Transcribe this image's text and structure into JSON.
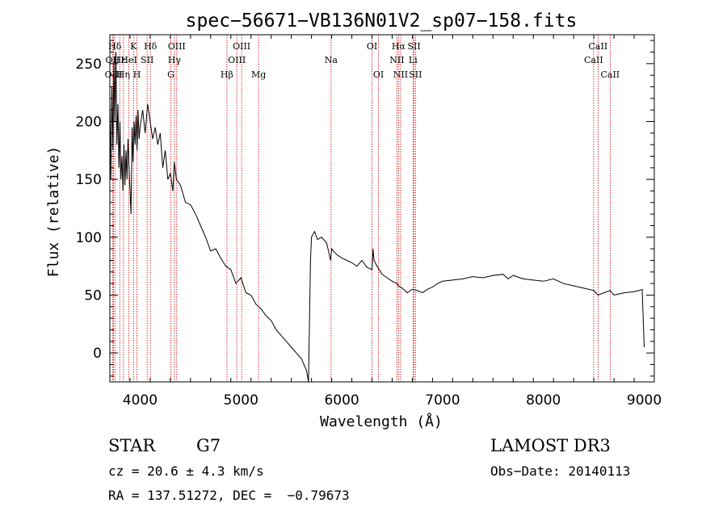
{
  "chart_data": {
    "type": "line",
    "title": "spec−56671−VB136N01V2_sp07−158.fits",
    "xlabel": "Wavelength (Å)",
    "ylabel": "Flux (relative)",
    "xlim": [
      3700,
      9100
    ],
    "ylim": [
      -25,
      275
    ],
    "xticks": [
      4000,
      5000,
      6000,
      7000,
      8000,
      9000
    ],
    "yticks": [
      0,
      50,
      100,
      150,
      200,
      250
    ],
    "grid": false,
    "series": [
      {
        "name": "flux",
        "x": [
          3700,
          3710,
          3720,
          3730,
          3740,
          3750,
          3760,
          3770,
          3780,
          3790,
          3800,
          3810,
          3820,
          3830,
          3840,
          3850,
          3860,
          3870,
          3880,
          3890,
          3900,
          3910,
          3920,
          3930,
          3940,
          3950,
          3960,
          3970,
          3980,
          3990,
          4000,
          4025,
          4050,
          4075,
          4100,
          4125,
          4150,
          4175,
          4200,
          4225,
          4250,
          4275,
          4300,
          4325,
          4340,
          4360,
          4400,
          4450,
          4500,
          4550,
          4600,
          4650,
          4700,
          4750,
          4800,
          4850,
          4900,
          4950,
          5000,
          5050,
          5100,
          5150,
          5200,
          5250,
          5300,
          5350,
          5400,
          5450,
          5500,
          5550,
          5600,
          5650,
          5670,
          5680,
          5690,
          5700,
          5730,
          5760,
          5800,
          5850,
          5890,
          5900,
          5950,
          6000,
          6050,
          6100,
          6150,
          6200,
          6250,
          6300,
          6310,
          6320,
          6350,
          6400,
          6450,
          6500,
          6550,
          6563,
          6600,
          6650,
          6700,
          6750,
          6800,
          6850,
          6900,
          6950,
          7000,
          7100,
          7200,
          7300,
          7400,
          7500,
          7600,
          7650,
          7700,
          7800,
          7900,
          8000,
          8100,
          8200,
          8300,
          8400,
          8500,
          8542,
          8600,
          8662,
          8700,
          8800,
          8900,
          8950,
          8980,
          9000
        ],
        "y": [
          220,
          150,
          230,
          175,
          250,
          200,
          260,
          180,
          215,
          160,
          200,
          150,
          170,
          140,
          180,
          145,
          175,
          150,
          185,
          160,
          140,
          120,
          195,
          165,
          200,
          180,
          205,
          175,
          210,
          185,
          195,
          210,
          190,
          215,
          200,
          185,
          195,
          180,
          190,
          160,
          175,
          150,
          155,
          140,
          165,
          150,
          145,
          130,
          128,
          120,
          110,
          100,
          88,
          90,
          82,
          75,
          72,
          60,
          65,
          52,
          50,
          42,
          38,
          32,
          28,
          20,
          15,
          10,
          5,
          0,
          -5,
          -15,
          -25,
          25,
          80,
          100,
          105,
          98,
          100,
          95,
          80,
          90,
          85,
          82,
          80,
          78,
          75,
          80,
          74,
          72,
          90,
          80,
          75,
          68,
          65,
          62,
          60,
          58,
          56,
          52,
          55,
          54,
          52,
          55,
          57,
          60,
          62,
          63,
          64,
          66,
          65,
          67,
          68,
          64,
          67,
          64,
          63,
          62,
          64,
          60,
          58,
          56,
          54,
          50,
          52,
          54,
          50,
          52,
          53,
          54,
          55,
          5
        ]
      }
    ],
    "lines": [
      {
        "label": "Hδ",
        "wave": 3750,
        "row": 0
      },
      {
        "label": "OII",
        "wave": 3727,
        "row": 1
      },
      {
        "label": "OIII",
        "wave": 3737,
        "row": 2
      },
      {
        "label": "K",
        "wave": 3934,
        "row": 0
      },
      {
        "label": "Hε",
        "wave": 3798,
        "row": 1
      },
      {
        "label": "Hη",
        "wave": 3835,
        "row": 2
      },
      {
        "label": "HeI",
        "wave": 3889,
        "row": 1
      },
      {
        "label": "SII",
        "wave": 4070,
        "row": 1
      },
      {
        "label": "H",
        "wave": 3969,
        "row": 2
      },
      {
        "label": "Hδ",
        "wave": 4102,
        "row": 0
      },
      {
        "label": "OIII",
        "wave": 4363,
        "row": 0
      },
      {
        "label": "Hγ",
        "wave": 4340,
        "row": 1
      },
      {
        "label": "G",
        "wave": 4305,
        "row": 2
      },
      {
        "label": "OIII",
        "wave": 5007,
        "row": 0
      },
      {
        "label": "OIII",
        "wave": 4959,
        "row": 1
      },
      {
        "label": "Hβ",
        "wave": 4861,
        "row": 2
      },
      {
        "label": "Mg",
        "wave": 5175,
        "row": 2
      },
      {
        "label": "Na",
        "wave": 5894,
        "row": 1
      },
      {
        "label": "OI",
        "wave": 6300,
        "row": 0
      },
      {
        "label": "OI",
        "wave": 6364,
        "row": 2
      },
      {
        "label": "Hα",
        "wave": 6563,
        "row": 0
      },
      {
        "label": "NII",
        "wave": 6548,
        "row": 1
      },
      {
        "label": "NII",
        "wave": 6584,
        "row": 2
      },
      {
        "label": "SII",
        "wave": 6717,
        "row": 0
      },
      {
        "label": "Li",
        "wave": 6707,
        "row": 1
      },
      {
        "label": "SII",
        "wave": 6731,
        "row": 2
      },
      {
        "label": "CaII",
        "wave": 8542,
        "row": 0
      },
      {
        "label": "CaII",
        "wave": 8498,
        "row": 1
      },
      {
        "label": "CaII",
        "wave": 8662,
        "row": 2
      }
    ],
    "annotations": {
      "object_class": "STAR",
      "subclass": "G7",
      "redshift": "cz = 20.6 ± 4.3 km/s",
      "coords": "RA = 137.51272, DEC =  −0.79673",
      "survey": "LAMOST DR3",
      "obs_date": "Obs−Date: 20140113"
    },
    "colors": {
      "spectrum": "#000000",
      "line_marker": "#cc0000",
      "axes": "#000000"
    }
  }
}
